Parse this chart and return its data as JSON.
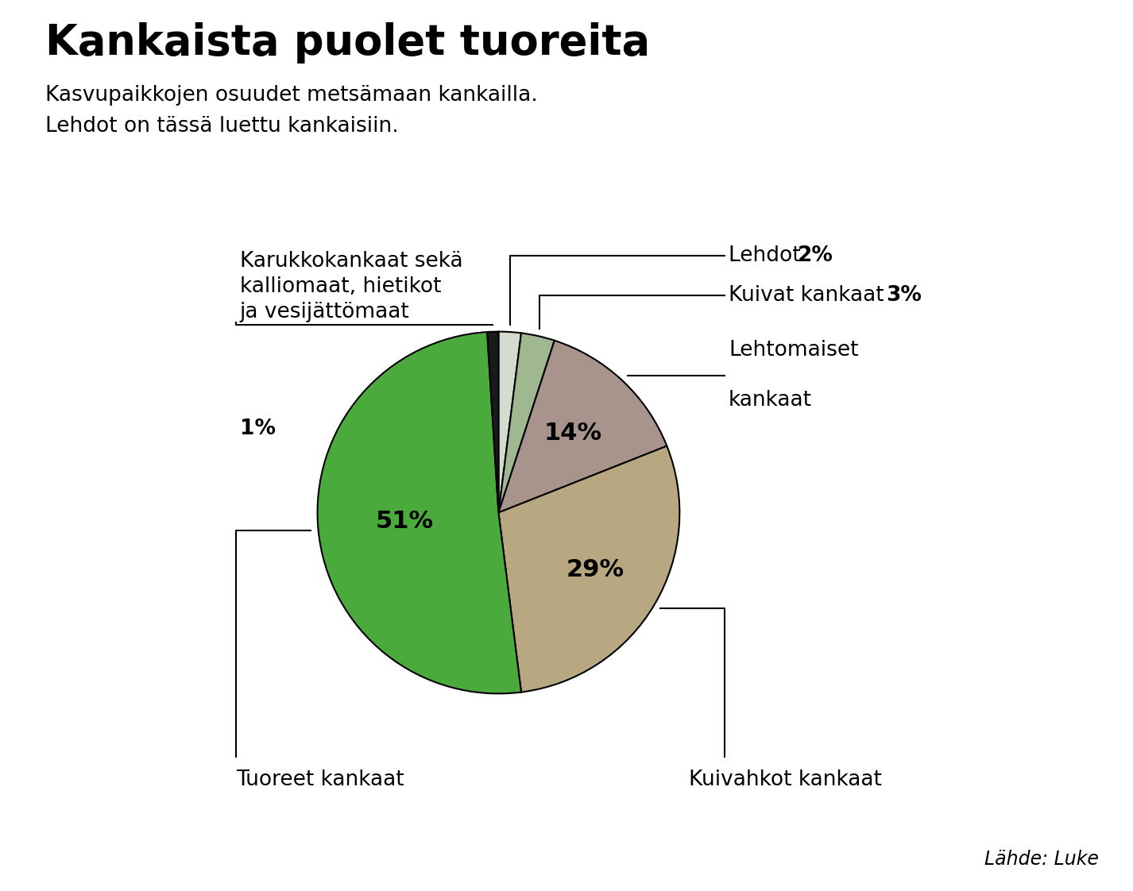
{
  "title": "Kankaista puolet tuoreita",
  "subtitle_line1": "Kasvupaikkojen osuudet metsämaan kankailla.",
  "subtitle_line2": "Lehdot on tässä luettu kankaisiin.",
  "source": "Lähde: Luke",
  "pie_order": [
    "lehdot",
    "kuivat",
    "lehtomaiset",
    "kuivahkot",
    "tuoreet",
    "karukko"
  ],
  "pie_sizes": [
    2,
    3,
    14,
    29,
    51,
    1
  ],
  "pie_colors": [
    "#d4dcd0",
    "#a0b890",
    "#a8948c",
    "#b8a882",
    "#4aaa3c",
    "#1a1a1a"
  ],
  "background_color": "#ffffff",
  "title_fontsize": 38,
  "subtitle_fontsize": 19,
  "pct_fontsize": 22,
  "label_fontsize": 19,
  "source_fontsize": 17
}
